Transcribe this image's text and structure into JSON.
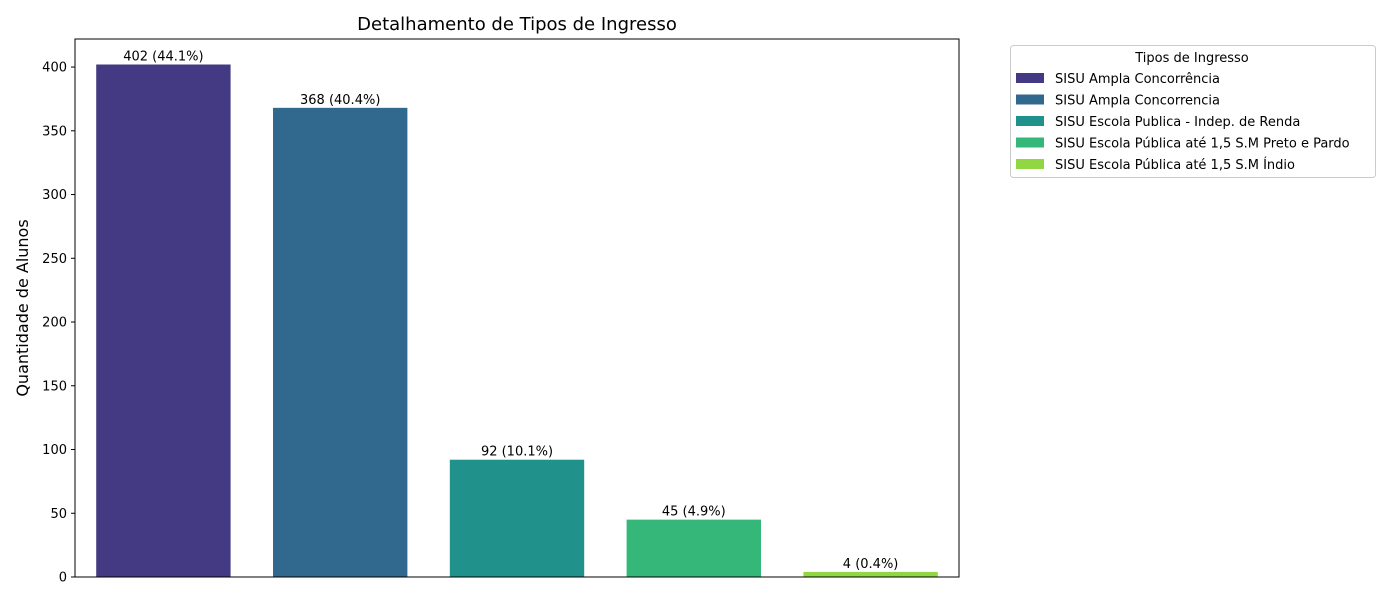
{
  "chart_data": {
    "type": "bar",
    "title": "Detalhamento de Tipos de Ingresso",
    "xlabel": "",
    "ylabel": "Quantidade de Alunos",
    "ylim": [
      0,
      422
    ],
    "yticks": [
      0,
      50,
      100,
      150,
      200,
      250,
      300,
      350,
      400
    ],
    "grid": false,
    "legend_title": "Tipos de Ingresso",
    "legend_position": "outside-top-right",
    "categories": [
      "SISU Ampla Concorrência",
      "SISU Ampla Concorrencia",
      "SISU Escola Publica - Indep. de Renda",
      "SISU Escola Pública até 1,5 S.M Preto e Pardo",
      "SISU Escola Pública até 1,5 S.M Índio"
    ],
    "values": [
      402,
      368,
      92,
      45,
      4
    ],
    "data_labels": [
      "402 (44.1%)",
      "368 (40.4%)",
      "92 (10.1%)",
      "45 (4.9%)",
      "4 (0.4%)"
    ],
    "colors": [
      "#443983",
      "#31688e",
      "#21918c",
      "#35b779",
      "#90d743"
    ]
  }
}
